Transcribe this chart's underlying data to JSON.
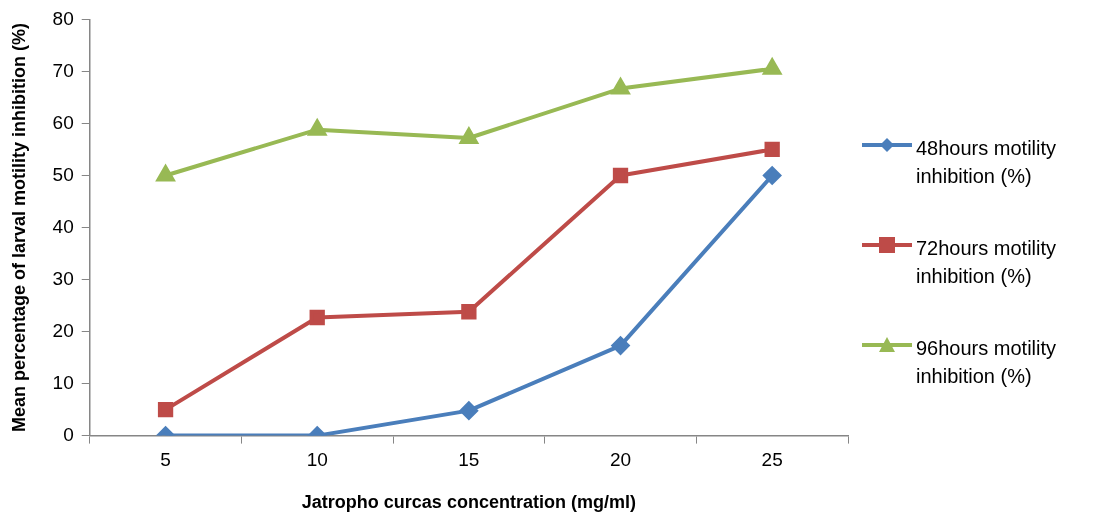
{
  "chart_data": {
    "type": "line",
    "xlabel": "Jatropho curcas concentration (mg/ml)",
    "ylabel": "Mean percentage of larval motility inhibition (%)",
    "categories": [
      "5",
      "10",
      "15",
      "20",
      "25"
    ],
    "series": [
      {
        "name": "48hours motility inhibition (%)",
        "color": "#4a7ebb",
        "marker": "diamond",
        "values": [
          0,
          0,
          4.8,
          17.3,
          50
        ]
      },
      {
        "name": "72hours  motility inhibition (%)",
        "color": "#be4b48",
        "marker": "square",
        "values": [
          5,
          22.7,
          23.8,
          50,
          55
        ]
      },
      {
        "name": "96hours  motility inhibition (%)",
        "color": "#98b954",
        "marker": "triangle",
        "values": [
          50,
          58.8,
          57.2,
          66.7,
          70.5
        ]
      }
    ],
    "ylim": [
      0,
      80
    ],
    "yticks": [
      0,
      10,
      20,
      30,
      40,
      50,
      60,
      70,
      80
    ],
    "grid": false,
    "legend": "right"
  }
}
